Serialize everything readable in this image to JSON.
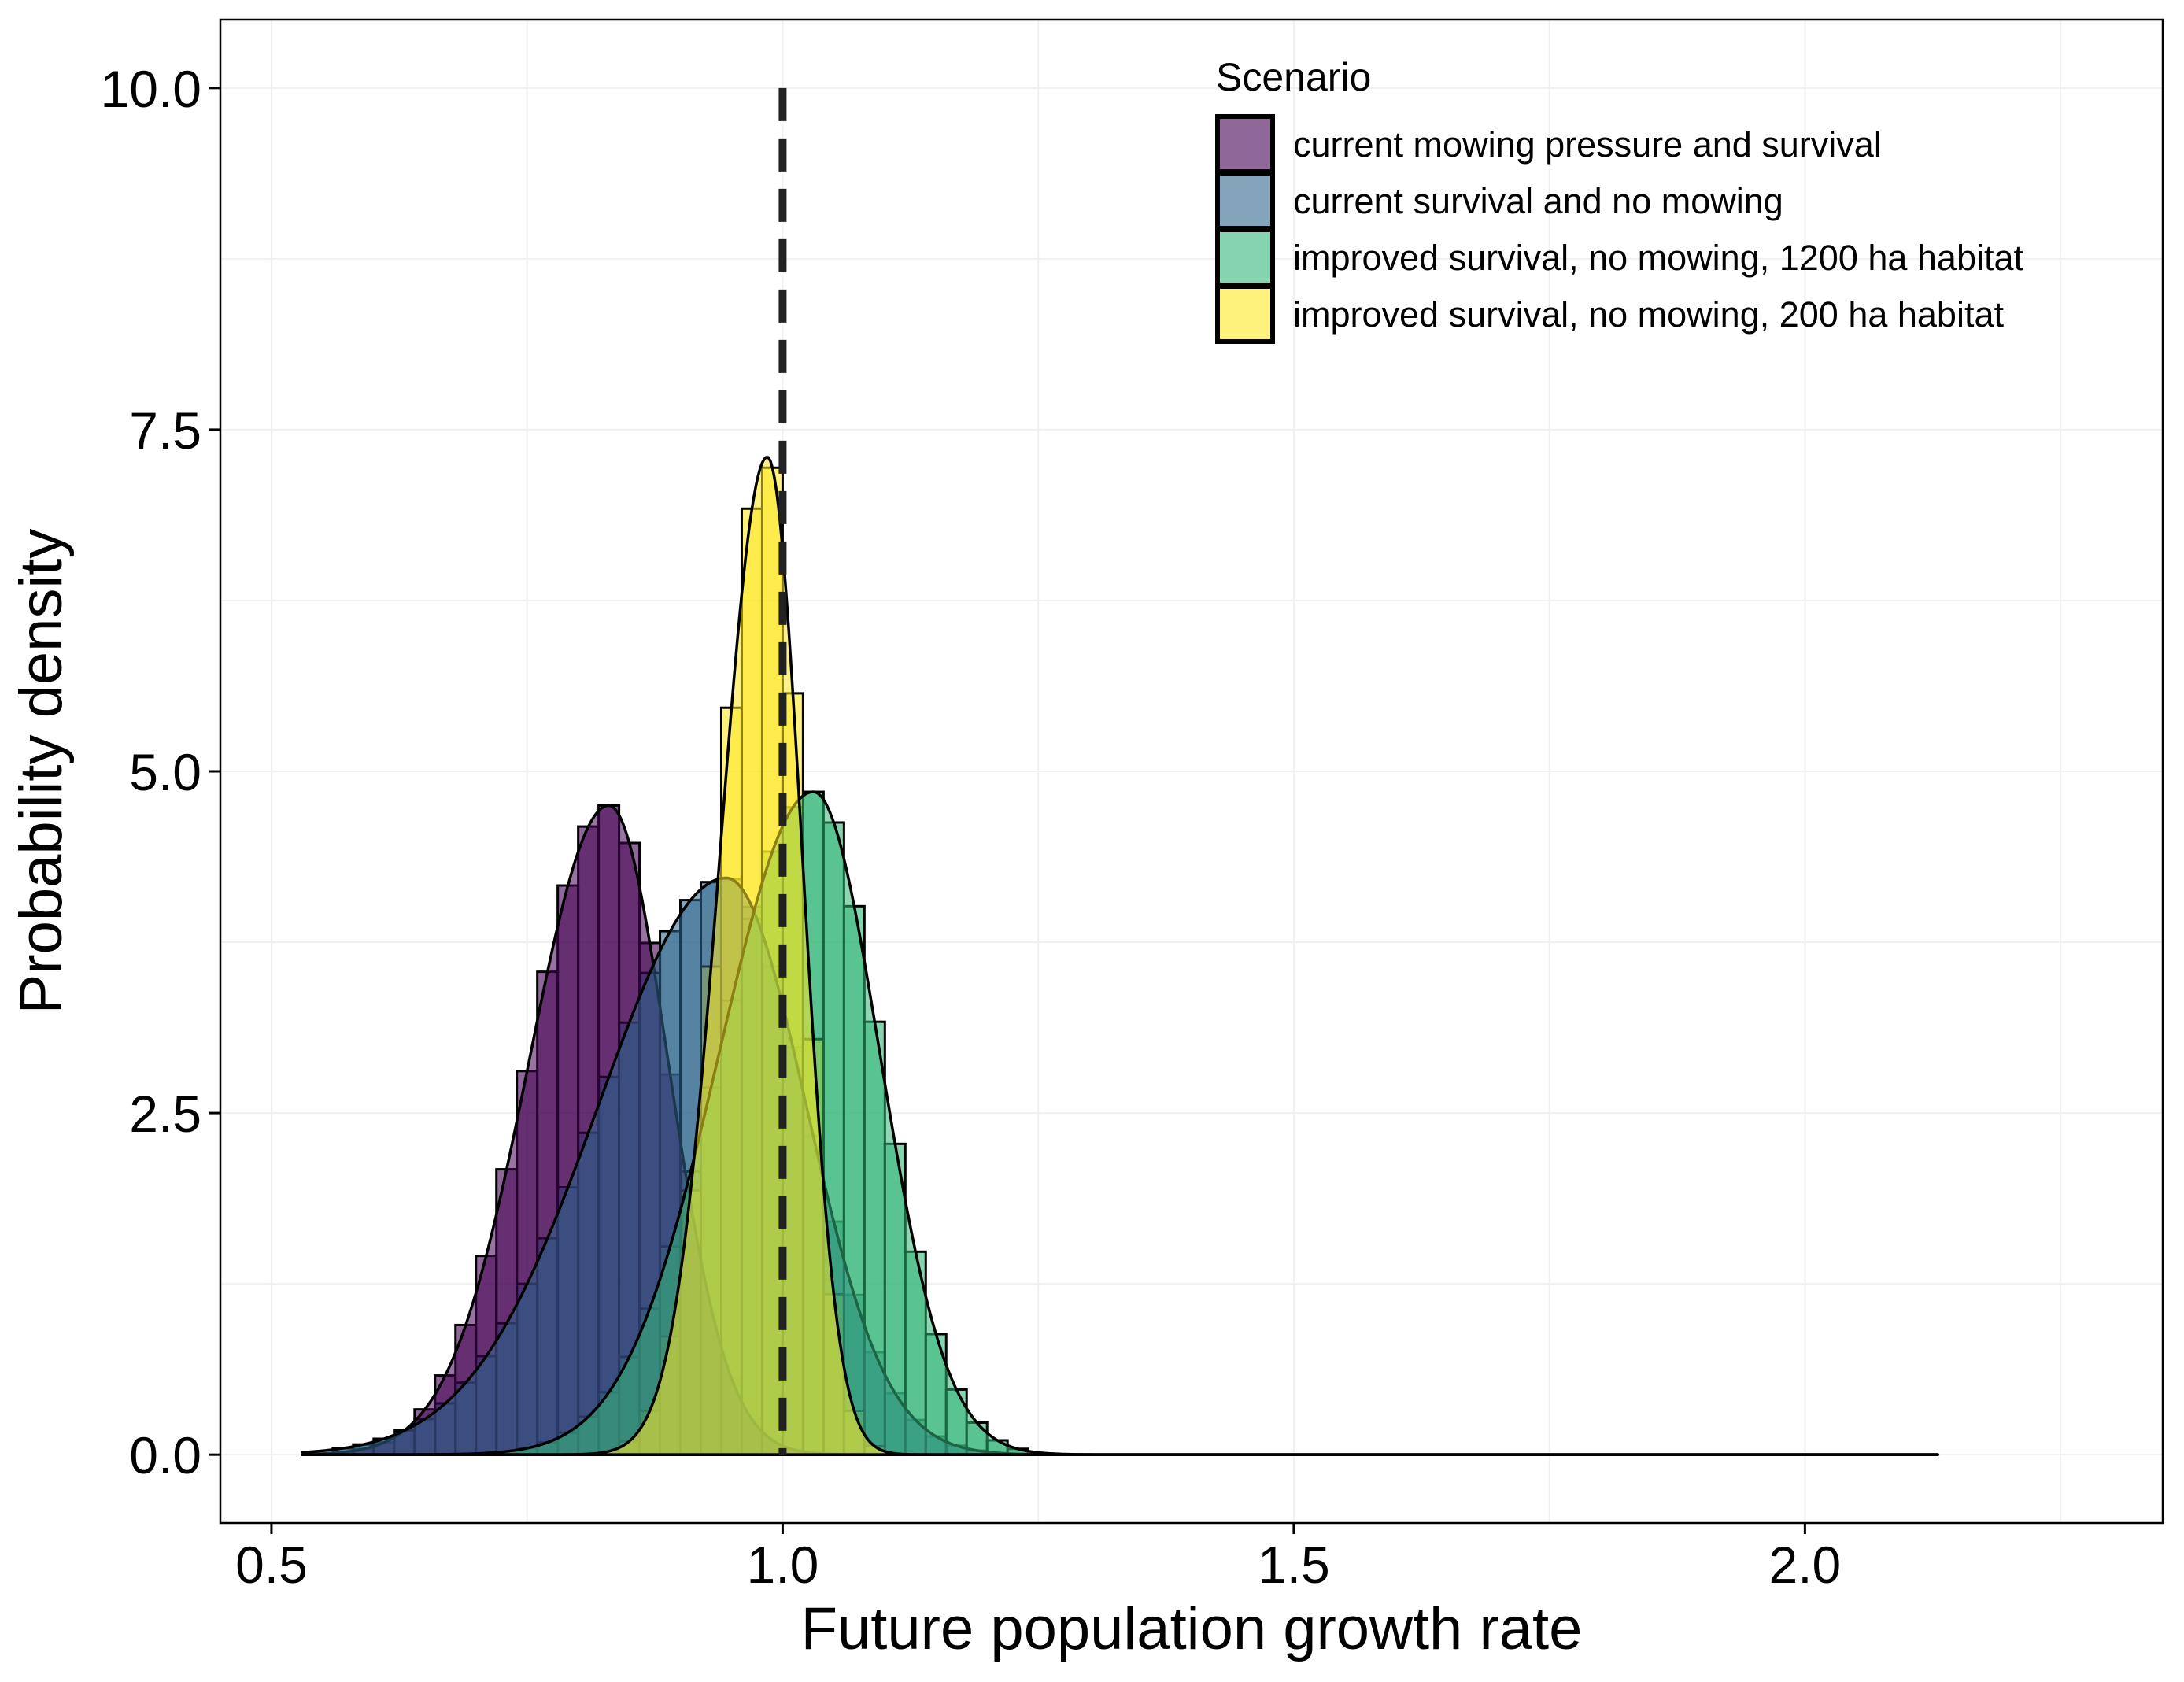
{
  "chart_data": {
    "type": "histogram-density",
    "xlabel": "Future population growth rate",
    "ylabel": "Probability density",
    "xlim": [
      0.45,
      2.35
    ],
    "ylim": [
      -0.5,
      10.5
    ],
    "x_ticks": [
      0.5,
      1.0,
      1.5,
      2.0
    ],
    "x_tick_labels": [
      "0.5",
      "1.0",
      "1.5",
      "2.0"
    ],
    "y_ticks": [
      0.0,
      2.5,
      5.0,
      7.5,
      10.0
    ],
    "y_tick_labels": [
      "0.0",
      "2.5",
      "5.0",
      "7.5",
      "10.0"
    ],
    "grid": true,
    "reference_line": {
      "x": 1.0,
      "style": "dashed"
    },
    "legend": {
      "title": "Scenario",
      "position": "top-right"
    },
    "bin_width": 0.02,
    "density_x_range": [
      0.53,
      2.13
    ],
    "series": [
      {
        "name": "current mowing pressure and survival",
        "color": "#440154",
        "fill_opacity": 0.6,
        "mean": 0.83,
        "sd_left": 0.078,
        "sd_right": 0.058,
        "peak": 4.75
      },
      {
        "name": "current survival and no mowing",
        "color": "#31688e",
        "fill_opacity": 0.6,
        "mean": 0.945,
        "sd_left": 0.125,
        "sd_right": 0.078,
        "peak": 4.22
      },
      {
        "name": "improved survival, no mowing, 1200 ha habitat",
        "color": "#35b779",
        "fill_opacity": 0.6,
        "mean": 1.03,
        "sd_left": 0.092,
        "sd_right": 0.065,
        "peak": 4.85
      },
      {
        "name": "improved survival, no mowing, 200 ha habitat",
        "color": "#fde725",
        "fill_opacity": 0.6,
        "mean": 0.985,
        "sd_left": 0.046,
        "sd_right": 0.034,
        "peak": 7.3
      }
    ]
  }
}
